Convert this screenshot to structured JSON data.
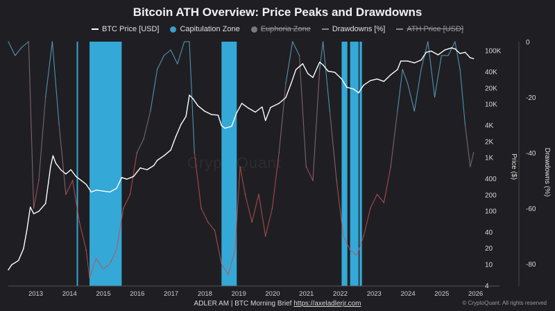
{
  "header": {
    "title": "Bitcoin ATH Overview: Price Peaks and Drawdowns"
  },
  "legend": [
    {
      "label": "BTC Price [USD]",
      "kind": "line",
      "color": "#ffffff",
      "struck": false
    },
    {
      "label": "Capitulation Zone",
      "kind": "dot",
      "color": "#3a9ec9",
      "struck": false
    },
    {
      "label": "Euphoria Zone",
      "kind": "dot",
      "color": "#7a7a7a",
      "struck": true
    },
    {
      "label": "Drawdowns [%]",
      "kind": "line",
      "color": "#8a8a8a",
      "struck": false
    },
    {
      "label": "ATH Price [USD]",
      "kind": "line",
      "color": "#8a8a8a",
      "struck": true
    }
  ],
  "watermark": "CryptoQuant",
  "footer": {
    "text": "ADLER AM | BTC Morning Brief",
    "link": "https://axeladlerjr.com",
    "copyright": "© CryptoQuant. All rights reserved"
  },
  "colors": {
    "background": "#1f1f23",
    "price_line": "#ffffff",
    "capitulation": "#36b4e6",
    "drawdown_low": "#c0504d",
    "drawdown_high": "#5aa6c8"
  },
  "chart_data": {
    "type": "line",
    "title": "Bitcoin ATH Overview: Price Peaks and Drawdowns",
    "x_ticks": [
      "2013",
      "2014",
      "2015",
      "2016",
      "2017",
      "2018",
      "2019",
      "2020",
      "2021",
      "2022",
      "2023",
      "2024",
      "2025",
      "2026"
    ],
    "xlim": [
      2012.6,
      2026.5
    ],
    "y_price_label": "Price ($)",
    "y_price_scale": "log",
    "y_price_ticks": [
      "4",
      "10",
      "20",
      "40",
      "100",
      "200",
      "400",
      "1K",
      "2K",
      "4K",
      "10K",
      "20K",
      "40K",
      "100K"
    ],
    "y_price_tick_values": [
      4,
      10,
      20,
      40,
      100,
      200,
      400,
      1000,
      2000,
      4000,
      10000,
      20000,
      40000,
      100000
    ],
    "y_price_lim": [
      4,
      150000
    ],
    "y_drawdown_label": "Drawdowns (%)",
    "y_drawdown_ticks": [
      "0",
      "-20",
      "-40",
      "-60",
      "-80"
    ],
    "y_drawdown_tick_values": [
      0,
      -20,
      -40,
      -60,
      -80
    ],
    "y_drawdown_lim": [
      -88,
      0
    ],
    "capitulation_zones": [
      [
        2014.62,
        2014.66
      ],
      [
        2015.0,
        2015.95
      ],
      [
        2018.9,
        2019.35
      ],
      [
        2022.45,
        2022.62
      ],
      [
        2022.7,
        2022.95
      ],
      [
        2022.98,
        2023.05
      ]
    ],
    "series": [
      {
        "name": "BTC Price [USD]",
        "x": [
          2012.6,
          2012.7,
          2012.9,
          2013.05,
          2013.15,
          2013.25,
          2013.35,
          2013.5,
          2013.7,
          2013.85,
          2013.92,
          2014.0,
          2014.15,
          2014.3,
          2014.45,
          2014.6,
          2014.75,
          2014.9,
          2015.05,
          2015.2,
          2015.4,
          2015.6,
          2015.8,
          2015.95,
          2016.1,
          2016.3,
          2016.5,
          2016.7,
          2016.9,
          2017.0,
          2017.2,
          2017.4,
          2017.55,
          2017.7,
          2017.85,
          2017.95,
          2018.05,
          2018.2,
          2018.4,
          2018.6,
          2018.8,
          2018.9,
          2019.0,
          2019.2,
          2019.35,
          2019.5,
          2019.7,
          2019.9,
          2020.1,
          2020.2,
          2020.35,
          2020.6,
          2020.8,
          2020.95,
          2021.1,
          2021.3,
          2021.45,
          2021.6,
          2021.8,
          2021.9,
          2022.05,
          2022.25,
          2022.45,
          2022.6,
          2022.8,
          2022.95,
          2023.1,
          2023.3,
          2023.5,
          2023.7,
          2023.9,
          2024.1,
          2024.2,
          2024.4,
          2024.6,
          2024.8,
          2024.95,
          2025.1,
          2025.3,
          2025.5,
          2025.7,
          2025.8,
          2025.95,
          2026.1,
          2026.25,
          2026.35
        ],
        "y": [
          8,
          10,
          12,
          20,
          45,
          120,
          90,
          100,
          140,
          700,
          1100,
          800,
          600,
          500,
          600,
          450,
          380,
          320,
          230,
          250,
          240,
          230,
          270,
          430,
          400,
          450,
          650,
          600,
          720,
          900,
          1100,
          1400,
          2500,
          4200,
          6000,
          15000,
          13000,
          9500,
          7500,
          6500,
          6300,
          4000,
          3600,
          3900,
          7000,
          10500,
          8500,
          7200,
          9000,
          5000,
          8800,
          10500,
          13500,
          24000,
          45000,
          58000,
          38000,
          32000,
          62000,
          55000,
          42000,
          40000,
          30000,
          21000,
          19500,
          16500,
          23000,
          28000,
          30000,
          27000,
          36000,
          45000,
          65000,
          65000,
          60000,
          68000,
          95000,
          100000,
          85000,
          105000,
          115000,
          110000,
          90000,
          95000,
          75000,
          72000
        ]
      },
      {
        "name": "Drawdowns [%]",
        "x": [
          2012.6,
          2012.8,
          2013.0,
          2013.2,
          2013.35,
          2013.5,
          2013.7,
          2013.9,
          2014.1,
          2014.3,
          2014.5,
          2014.7,
          2014.9,
          2015.0,
          2015.2,
          2015.4,
          2015.6,
          2015.8,
          2016.0,
          2016.2,
          2016.4,
          2016.6,
          2016.8,
          2017.0,
          2017.2,
          2017.4,
          2017.6,
          2017.8,
          2017.95,
          2018.1,
          2018.3,
          2018.5,
          2018.7,
          2018.9,
          2019.1,
          2019.3,
          2019.45,
          2019.6,
          2019.8,
          2020.0,
          2020.2,
          2020.4,
          2020.6,
          2020.8,
          2021.0,
          2021.2,
          2021.4,
          2021.6,
          2021.8,
          2021.9,
          2022.1,
          2022.3,
          2022.5,
          2022.7,
          2022.9,
          2023.1,
          2023.3,
          2023.5,
          2023.7,
          2023.9,
          2024.1,
          2024.25,
          2024.4,
          2024.6,
          2024.8,
          2025.0,
          2025.2,
          2025.4,
          2025.6,
          2025.8,
          2025.95,
          2026.1,
          2026.25,
          2026.35
        ],
        "y": [
          0,
          -5,
          -2,
          0,
          -60,
          -50,
          -20,
          0,
          -30,
          -55,
          -50,
          -65,
          -75,
          -85,
          -78,
          -82,
          -80,
          -75,
          -60,
          -55,
          -40,
          -35,
          -25,
          -10,
          -5,
          -3,
          -8,
          0,
          0,
          -40,
          -60,
          -65,
          -68,
          -80,
          -84,
          -75,
          -45,
          -55,
          -65,
          -55,
          -70,
          -60,
          -40,
          -15,
          0,
          -5,
          -45,
          -50,
          -10,
          0,
          -25,
          -50,
          -70,
          -75,
          -77,
          -70,
          -60,
          -55,
          -58,
          -45,
          -25,
          -10,
          -15,
          -25,
          -10,
          0,
          -20,
          -5,
          -5,
          0,
          -10,
          -30,
          -45,
          -40
        ]
      }
    ],
    "grid": false,
    "legend_position": "top-center"
  }
}
